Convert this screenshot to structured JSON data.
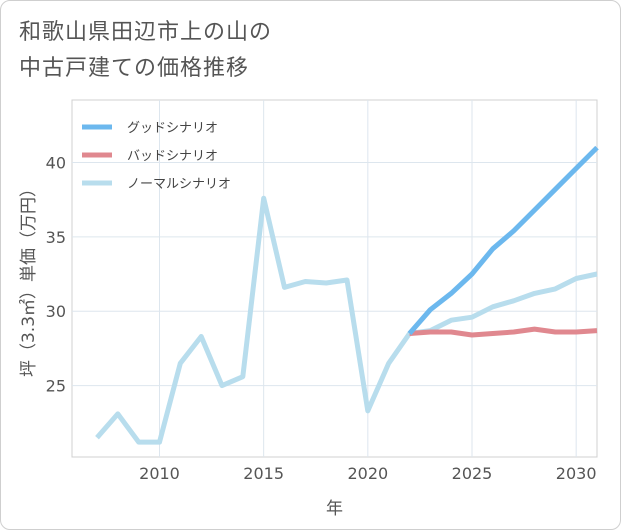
{
  "title_lines": [
    "和歌山県田辺市上の山の",
    "中古戸建ての価格推移"
  ],
  "chart_data": {
    "type": "line",
    "title": "和歌山県田辺市上の山の中古戸建ての価格推移",
    "xlabel": "年",
    "ylabel": "坪（3.3㎡）単価（万円）",
    "xlim": [
      2005.8,
      2031
    ],
    "ylim": [
      20.2,
      44.2
    ],
    "xticks": [
      2010,
      2015,
      2020,
      2025,
      2030
    ],
    "yticks": [
      25,
      30,
      35,
      40
    ],
    "grid": true,
    "legend_position": "top-left",
    "series": [
      {
        "name": "グッドシナリオ",
        "color": "#6cb8ee",
        "x": [
          2022,
          2023,
          2024,
          2025,
          2026,
          2027,
          2028,
          2029,
          2030,
          2031
        ],
        "values": [
          28.5,
          30.1,
          31.2,
          32.5,
          34.2,
          35.4,
          36.8,
          38.2,
          39.6,
          41.0
        ]
      },
      {
        "name": "バッドシナリオ",
        "color": "#e0888f",
        "x": [
          2022,
          2023,
          2024,
          2025,
          2026,
          2027,
          2028,
          2029,
          2030,
          2031
        ],
        "values": [
          28.5,
          28.6,
          28.6,
          28.4,
          28.5,
          28.6,
          28.8,
          28.6,
          28.6,
          28.7
        ]
      },
      {
        "name": "ノーマルシナリオ",
        "color": "#b8dded",
        "x": [
          2007,
          2008,
          2009,
          2010,
          2011,
          2012,
          2013,
          2014,
          2015,
          2016,
          2017,
          2018,
          2019,
          2020,
          2021,
          2022,
          2023,
          2024,
          2025,
          2026,
          2027,
          2028,
          2029,
          2030,
          2031
        ],
        "values": [
          21.5,
          23.1,
          21.2,
          21.2,
          26.5,
          28.3,
          25.0,
          25.6,
          37.6,
          31.6,
          32.0,
          31.9,
          32.1,
          23.3,
          26.5,
          28.5,
          28.7,
          29.4,
          29.6,
          30.3,
          30.7,
          31.2,
          31.5,
          32.2,
          32.5
        ]
      }
    ]
  }
}
